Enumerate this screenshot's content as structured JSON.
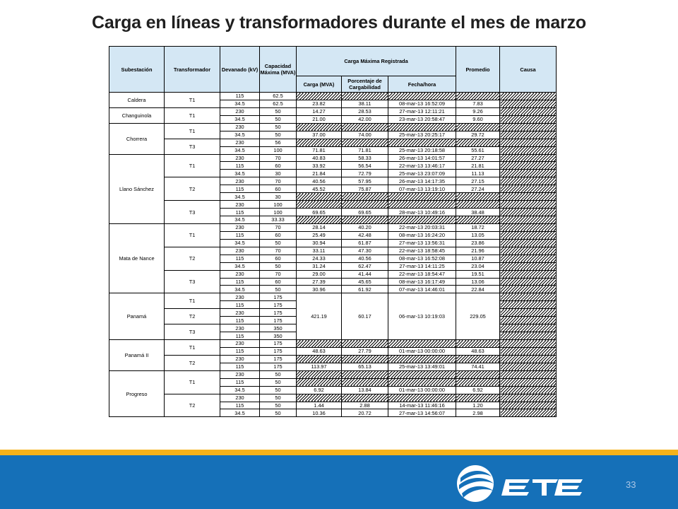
{
  "title": "Carga en líneas y transformadores durante el mes de marzo",
  "headers": {
    "substation": "Subestación",
    "transformer": "Transformador",
    "winding": "Devanado (kV)",
    "capacity": "Capacidad Máxima (MVA)",
    "max_load_group": "Carga Máxima Registrada",
    "load": "Carga (MVA)",
    "percent": "Porcentaje de Cargabilidad",
    "datetime": "Fecha/hora",
    "average": "Promedio",
    "cause": "Causa"
  },
  "substations": [
    {
      "name": "Caldera",
      "rows": 1,
      "transformers": [
        {
          "name": "T1",
          "rows": [
            {
              "kv": "115",
              "cap": "62.5",
              "load": "",
              "pct": "",
              "dt": "",
              "avg": ""
            },
            {
              "kv": "34.5",
              "cap": "62.5",
              "load": "23.82",
              "pct": "38.11",
              "dt": "08-mar-13 16:52:09",
              "avg": "7.83"
            }
          ]
        }
      ]
    },
    {
      "name": "Changuinola",
      "transformers": [
        {
          "name": "T1",
          "rows": [
            {
              "kv": "230",
              "cap": "50",
              "load": "14.27",
              "pct": "28.53",
              "dt": "27-mar-13 12:11:21",
              "avg": "9.26"
            },
            {
              "kv": "34.5",
              "cap": "50",
              "load": "21.00",
              "pct": "42.00",
              "dt": "23-mar-13 20:58:47",
              "avg": "9.60"
            }
          ]
        }
      ]
    },
    {
      "name": "Chorrera",
      "transformers": [
        {
          "name": "T1",
          "rows": [
            {
              "kv": "230",
              "cap": "50",
              "load": "",
              "pct": "",
              "dt": "",
              "avg": ""
            },
            {
              "kv": "34.5",
              "cap": "50",
              "load": "37.00",
              "pct": "74.00",
              "dt": "25-mar-13 20:25:17",
              "avg": "29.72"
            }
          ]
        },
        {
          "name": "T3",
          "rows": [
            {
              "kv": "230",
              "cap": "56",
              "load": "",
              "pct": "",
              "dt": "",
              "avg": ""
            },
            {
              "kv": "34.5",
              "cap": "100",
              "load": "71.81",
              "pct": "71.81",
              "dt": "25-mar-13 20:18:58",
              "avg": "55.61"
            }
          ]
        }
      ]
    },
    {
      "name": "Llano Sánchez",
      "transformers": [
        {
          "name": "T1",
          "rows": [
            {
              "kv": "230",
              "cap": "70",
              "load": "40.83",
              "pct": "58.33",
              "dt": "26-mar-13 14:01:57",
              "avg": "27.27"
            },
            {
              "kv": "115",
              "cap": "60",
              "load": "33.92",
              "pct": "56.54",
              "dt": "22-mar-13 13:46:17",
              "avg": "21.81"
            },
            {
              "kv": "34.5",
              "cap": "30",
              "load": "21.84",
              "pct": "72.79",
              "dt": "25-mar-13 23:07:09",
              "avg": "11.13"
            }
          ]
        },
        {
          "name": "T2",
          "rows": [
            {
              "kv": "230",
              "cap": "70",
              "load": "40.56",
              "pct": "57.95",
              "dt": "26-mar-13 14:17:35",
              "avg": "27.15"
            },
            {
              "kv": "115",
              "cap": "60",
              "load": "45.52",
              "pct": "75.87",
              "dt": "07-mar-13 13:19:10",
              "avg": "27.24"
            },
            {
              "kv": "34.5",
              "cap": "30",
              "load": "",
              "pct": "",
              "dt": "",
              "avg": ""
            }
          ]
        },
        {
          "name": "T3",
          "rows": [
            {
              "kv": "230",
              "cap": "100",
              "load": "",
              "pct": "",
              "dt": "",
              "avg": ""
            },
            {
              "kv": "115",
              "cap": "100",
              "load": "69.65",
              "pct": "69.65",
              "dt": "28-mar-13 10:49:16",
              "avg": "38.48"
            },
            {
              "kv": "34.5",
              "cap": "33.33",
              "load": "",
              "pct": "",
              "dt": "",
              "avg": ""
            }
          ]
        }
      ]
    },
    {
      "name": "Mata de Nance",
      "transformers": [
        {
          "name": "T1",
          "rows": [
            {
              "kv": "230",
              "cap": "70",
              "load": "28.14",
              "pct": "40.20",
              "dt": "22-mar-13 20:03:31",
              "avg": "18.72"
            },
            {
              "kv": "115",
              "cap": "60",
              "load": "25.49",
              "pct": "42.48",
              "dt": "08-mar-13 16:24:20",
              "avg": "13.05"
            },
            {
              "kv": "34.5",
              "cap": "50",
              "load": "30.94",
              "pct": "61.87",
              "dt": "27-mar-13 13:56:31",
              "avg": "23.86"
            }
          ]
        },
        {
          "name": "T2",
          "rows": [
            {
              "kv": "230",
              "cap": "70",
              "load": "33.11",
              "pct": "47.30",
              "dt": "22-mar-13 18:58:45",
              "avg": "21.96"
            },
            {
              "kv": "115",
              "cap": "60",
              "load": "24.33",
              "pct": "40.56",
              "dt": "08-mar-13 16:52:08",
              "avg": "10.87"
            },
            {
              "kv": "34.5",
              "cap": "50",
              "load": "31.24",
              "pct": "62.47",
              "dt": "27-mar-13 14:11:25",
              "avg": "23.04"
            }
          ]
        },
        {
          "name": "T3",
          "rows": [
            {
              "kv": "230",
              "cap": "70",
              "load": "29.00",
              "pct": "41.44",
              "dt": "22-mar-13 18:54:47",
              "avg": "19.51"
            },
            {
              "kv": "115",
              "cap": "60",
              "load": "27.39",
              "pct": "45.65",
              "dt": "08-mar-13 16:17:49",
              "avg": "13.06"
            },
            {
              "kv": "34.5",
              "cap": "50",
              "load": "30.96",
              "pct": "61.92",
              "dt": "07-mar-13 14:46:01",
              "avg": "22.84"
            }
          ]
        }
      ]
    },
    {
      "name": "Panamá",
      "merged": {
        "load": "421.19",
        "pct": "60.17",
        "dt": "06-mar-13 10:19:03",
        "avg": "229.05"
      },
      "transformers": [
        {
          "name": "T1",
          "rows": [
            {
              "kv": "230",
              "cap": "175"
            },
            {
              "kv": "115",
              "cap": "175"
            }
          ]
        },
        {
          "name": "T2",
          "rows": [
            {
              "kv": "230",
              "cap": "175"
            },
            {
              "kv": "115",
              "cap": "175"
            }
          ]
        },
        {
          "name": "T3",
          "rows": [
            {
              "kv": "230",
              "cap": "350"
            },
            {
              "kv": "115",
              "cap": "350"
            }
          ]
        }
      ]
    },
    {
      "name": "Panamá II",
      "transformers": [
        {
          "name": "T1",
          "rows": [
            {
              "kv": "230",
              "cap": "175",
              "load": "",
              "pct": "",
              "dt": "",
              "avg": ""
            },
            {
              "kv": "115",
              "cap": "175",
              "load": "48.63",
              "pct": "27.79",
              "dt": "01-mar-13 00:00:00",
              "avg": "48.63"
            }
          ]
        },
        {
          "name": "T2",
          "rows": [
            {
              "kv": "230",
              "cap": "175",
              "load": "",
              "pct": "",
              "dt": "",
              "avg": ""
            },
            {
              "kv": "115",
              "cap": "175",
              "load": "113.97",
              "pct": "65.13",
              "dt": "25-mar-13 13:49:01",
              "avg": "74.41"
            }
          ]
        }
      ]
    },
    {
      "name": "Progreso",
      "transformers": [
        {
          "name": "T1",
          "rows": [
            {
              "kv": "230",
              "cap": "50",
              "load": "",
              "pct": "",
              "dt": "",
              "avg": ""
            },
            {
              "kv": "115",
              "cap": "50",
              "load": "",
              "pct": "",
              "dt": "",
              "avg": ""
            },
            {
              "kv": "34.5",
              "cap": "50",
              "load": "6.92",
              "pct": "13.84",
              "dt": "01-mar-13 00:00:00",
              "avg": "6.92"
            }
          ]
        },
        {
          "name": "T2",
          "rows": [
            {
              "kv": "230",
              "cap": "50",
              "load": "",
              "pct": "",
              "dt": "",
              "avg": ""
            },
            {
              "kv": "115",
              "cap": "50",
              "load": "1.44",
              "pct": "2.88",
              "dt": "14-mar-13 11:46:16",
              "avg": "1.20"
            },
            {
              "kv": "34.5",
              "cap": "50",
              "load": "10.36",
              "pct": "20.72",
              "dt": "27-mar-13 14:56:07",
              "avg": "2.98"
            }
          ]
        }
      ]
    }
  ],
  "footer": {
    "logo_text": "ETESA",
    "page_number": "33",
    "colors": {
      "bar": "#1570b8",
      "accent": "#f6b21a",
      "header_fill": "#d4e7f4"
    }
  }
}
